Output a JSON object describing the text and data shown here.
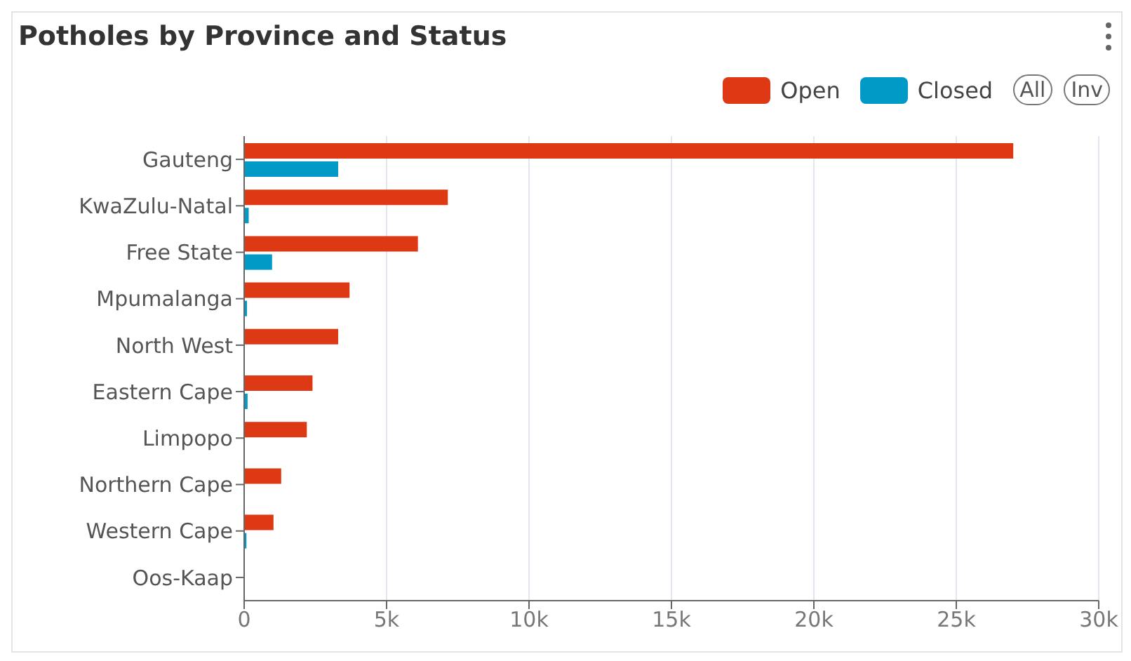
{
  "chart_data": {
    "type": "bar",
    "orientation": "horizontal",
    "title": "Potholes by Province and Status",
    "categories": [
      "Gauteng",
      "KwaZulu-Natal",
      "Free State",
      "Mpumalanga",
      "North West",
      "Eastern Cape",
      "Limpopo",
      "Northern Cape",
      "Western Cape",
      "Oos-Kaap"
    ],
    "series": [
      {
        "name": "Open",
        "color": "#dd3914",
        "values": [
          27000,
          7150,
          6100,
          3700,
          3300,
          2400,
          2200,
          1300,
          1030,
          0
        ]
      },
      {
        "name": "Closed",
        "color": "#0199c6",
        "values": [
          3300,
          160,
          980,
          100,
          null,
          120,
          null,
          null,
          80,
          0
        ]
      }
    ],
    "xlim": [
      0,
      30000
    ],
    "xticks": [
      {
        "value": 0,
        "label": "0"
      },
      {
        "value": 5000,
        "label": "5k"
      },
      {
        "value": 10000,
        "label": "10k"
      },
      {
        "value": 15000,
        "label": "15k"
      },
      {
        "value": 20000,
        "label": "20k"
      },
      {
        "value": 25000,
        "label": "25k"
      },
      {
        "value": 30000,
        "label": "30k"
      }
    ],
    "grid": "x",
    "legend": "top right",
    "annotations": [
      "All",
      "Inv"
    ]
  }
}
